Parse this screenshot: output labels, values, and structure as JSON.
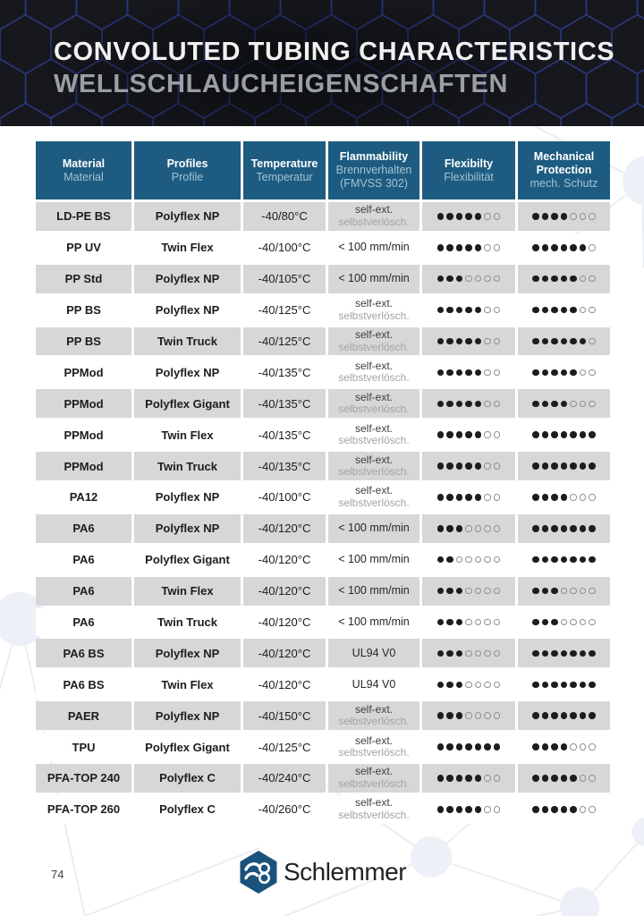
{
  "banner": {
    "title_en": "CONVOLUTED TUBING CHARACTERISTICS",
    "title_de": "WELLSCHLAUCHEIGENSCHAFTEN"
  },
  "table": {
    "columns": [
      {
        "en": "Material",
        "de": "Material"
      },
      {
        "en": "Profiles",
        "de": "Profile"
      },
      {
        "en": "Temperature",
        "de": "Temperatur"
      },
      {
        "en": "Flammability",
        "de": "Brennverhalten",
        "de2": "(FMVSS 302)"
      },
      {
        "en": "Flexibilty",
        "de": "Flexibilität"
      },
      {
        "en": "Mechanical Protection",
        "de": "mech. Schutz"
      }
    ],
    "dots_max": 7,
    "rows": [
      {
        "material": "LD-PE BS",
        "profile": "Polyflex NP",
        "temperature": "-40/80°C",
        "flammability": [
          "self-ext.",
          "selbstverlösch."
        ],
        "flexibility": 5,
        "protection": 4
      },
      {
        "material": "PP UV",
        "profile": "Twin Flex",
        "temperature": "-40/100°C",
        "flammability": [
          "< 100 mm/min"
        ],
        "flexibility": 5,
        "protection": 6
      },
      {
        "material": "PP Std",
        "profile": "Polyflex NP",
        "temperature": "-40/105°C",
        "flammability": [
          "< 100 mm/min"
        ],
        "flexibility": 3,
        "protection": 5
      },
      {
        "material": "PP BS",
        "profile": "Polyflex NP",
        "temperature": "-40/125°C",
        "flammability": [
          "self-ext.",
          "selbstverlösch."
        ],
        "flexibility": 5,
        "protection": 5
      },
      {
        "material": "PP BS",
        "profile": "Twin Truck",
        "temperature": "-40/125°C",
        "flammability": [
          "self-ext.",
          "selbstverlösch."
        ],
        "flexibility": 5,
        "protection": 6
      },
      {
        "material": "PPMod",
        "profile": "Polyflex NP",
        "temperature": "-40/135°C",
        "flammability": [
          "self-ext.",
          "selbstverlösch."
        ],
        "flexibility": 5,
        "protection": 5
      },
      {
        "material": "PPMod",
        "profile": "Polyflex Gigant",
        "temperature": "-40/135°C",
        "flammability": [
          "self-ext.",
          "selbstverlösch."
        ],
        "flexibility": 5,
        "protection": 4
      },
      {
        "material": "PPMod",
        "profile": "Twin Flex",
        "temperature": "-40/135°C",
        "flammability": [
          "self-ext.",
          "selbstverlösch."
        ],
        "flexibility": 5,
        "protection": 7
      },
      {
        "material": "PPMod",
        "profile": "Twin Truck",
        "temperature": "-40/135°C",
        "flammability": [
          "self-ext.",
          "selbstverlösch."
        ],
        "flexibility": 5,
        "protection": 7
      },
      {
        "material": "PA12",
        "profile": "Polyflex NP",
        "temperature": "-40/100°C",
        "flammability": [
          "self-ext.",
          "selbstverlösch."
        ],
        "flexibility": 5,
        "protection": 4
      },
      {
        "material": "PA6",
        "profile": "Polyflex NP",
        "temperature": "-40/120°C",
        "flammability": [
          "< 100 mm/min"
        ],
        "flexibility": 3,
        "protection": 7
      },
      {
        "material": "PA6",
        "profile": "Polyflex Gigant",
        "temperature": "-40/120°C",
        "flammability": [
          "< 100 mm/min"
        ],
        "flexibility": 2,
        "protection": 7
      },
      {
        "material": "PA6",
        "profile": "Twin Flex",
        "temperature": "-40/120°C",
        "flammability": [
          "< 100 mm/min"
        ],
        "flexibility": 3,
        "protection": 3
      },
      {
        "material": "PA6",
        "profile": "Twin Truck",
        "temperature": "-40/120°C",
        "flammability": [
          "< 100 mm/min"
        ],
        "flexibility": 3,
        "protection": 3
      },
      {
        "material": "PA6 BS",
        "profile": "Polyflex NP",
        "temperature": "-40/120°C",
        "flammability": [
          "UL94 V0"
        ],
        "flexibility": 3,
        "protection": 7
      },
      {
        "material": "PA6 BS",
        "profile": "Twin Flex",
        "temperature": "-40/120°C",
        "flammability": [
          "UL94 V0"
        ],
        "flexibility": 3,
        "protection": 7
      },
      {
        "material": "PAER",
        "profile": "Polyflex NP",
        "temperature": "-40/150°C",
        "flammability": [
          "self-ext.",
          "selbstverlösch."
        ],
        "flexibility": 3,
        "protection": 7
      },
      {
        "material": "TPU",
        "profile": "Polyflex Gigant",
        "temperature": "-40/125°C",
        "flammability": [
          "self-ext.",
          "selbstverlösch."
        ],
        "flexibility": 7,
        "protection": 4
      },
      {
        "material": "PFA-TOP 240",
        "profile": "Polyflex C",
        "temperature": "-40/240°C",
        "flammability": [
          "self-ext.",
          "selbstverlösch."
        ],
        "flexibility": 5,
        "protection": 5
      },
      {
        "material": "PFA-TOP 260",
        "profile": "Polyflex C",
        "temperature": "-40/260°C",
        "flammability": [
          "self-ext.",
          "selbstverlösch."
        ],
        "flexibility": 5,
        "protection": 5
      }
    ]
  },
  "footer": {
    "page_number": "74",
    "brand": "Schlemmer"
  },
  "icons": {
    "brand_logo": "schlemmer-hexagon-logo",
    "rating_filled": "filled-dot",
    "rating_empty": "empty-dot"
  },
  "colors": {
    "banner_bg": "#16181d",
    "hex_line": "#2c3e95",
    "header_bg": "#1d5c80",
    "header_subtext": "#a3c2d5",
    "row_alt": "#d7d7d7",
    "text": "#1d1d1b",
    "muted": "#a3a3a3",
    "title_de": "#9b9ea3",
    "logo_blue": "#1a527c"
  }
}
